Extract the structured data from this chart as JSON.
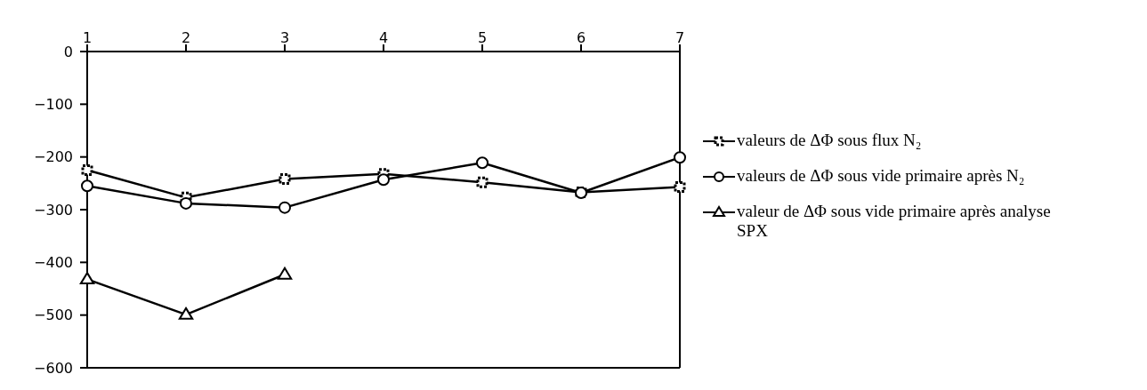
{
  "chart_data": {
    "type": "line",
    "x": [
      1,
      2,
      3,
      4,
      5,
      6,
      7
    ],
    "xlim": [
      1,
      7
    ],
    "xticks": [
      1,
      2,
      3,
      4,
      5,
      6,
      7
    ],
    "ylim": [
      -600,
      0
    ],
    "yticks": [
      0,
      -100,
      -200,
      -300,
      -400,
      -500,
      -600
    ],
    "grid": false,
    "legend": "right",
    "line_style": "solid",
    "series": [
      {
        "name": "valeurs de ΔΦ sous flux N₂",
        "color": "#000000",
        "marker": "square",
        "values": [
          -225,
          -277,
          -242,
          -232,
          -248,
          -267,
          -257
        ]
      },
      {
        "name": "valeurs de ΔΦ sous vide primaire après N₂",
        "color": "#000000",
        "marker": "circle",
        "values": [
          -255,
          -288,
          -296,
          -243,
          -211,
          -268,
          -201
        ]
      },
      {
        "name": "valeur de ΔΦ sous vide primaire après analyse SPX",
        "color": "#000000",
        "marker": "triangle",
        "values": [
          -432,
          -499,
          -423,
          null,
          null,
          null,
          null
        ]
      }
    ]
  }
}
